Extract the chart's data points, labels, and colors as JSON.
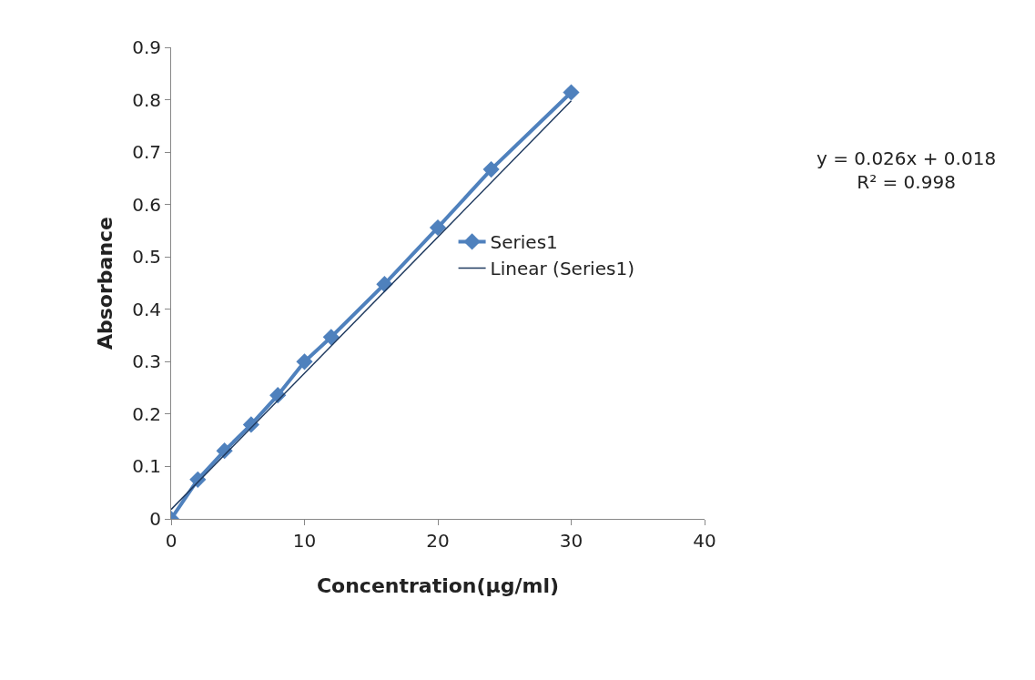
{
  "chart_data": {
    "type": "line",
    "xlabel": "Concentration(µg/ml)",
    "ylabel": "Absorbance",
    "x": [
      0,
      2,
      4,
      6,
      8,
      10,
      12,
      16,
      20,
      24,
      30
    ],
    "series": [
      {
        "name": "Series1",
        "color": "#4f81bd",
        "values": [
          0,
          0.075,
          0.13,
          0.18,
          0.236,
          0.3,
          0.347,
          0.448,
          0.556,
          0.667,
          0.814
        ],
        "marker": "diamond"
      },
      {
        "name": "Linear (Series1)",
        "type": "line",
        "color": "#1f3a5f",
        "x": [
          0,
          30
        ],
        "values": [
          0.018,
          0.798
        ],
        "marker": "none"
      }
    ],
    "xlim": [
      0,
      40
    ],
    "xticks": [
      0,
      10,
      20,
      30,
      40
    ],
    "ylim": [
      0,
      0.9
    ],
    "yticks": [
      0,
      0.1,
      0.2,
      0.3,
      0.4,
      0.5,
      0.6,
      0.7,
      0.8,
      0.9
    ],
    "legend": "right",
    "annotations": [
      "y = 0.026x + 0.018\nR² = 0.998"
    ]
  }
}
